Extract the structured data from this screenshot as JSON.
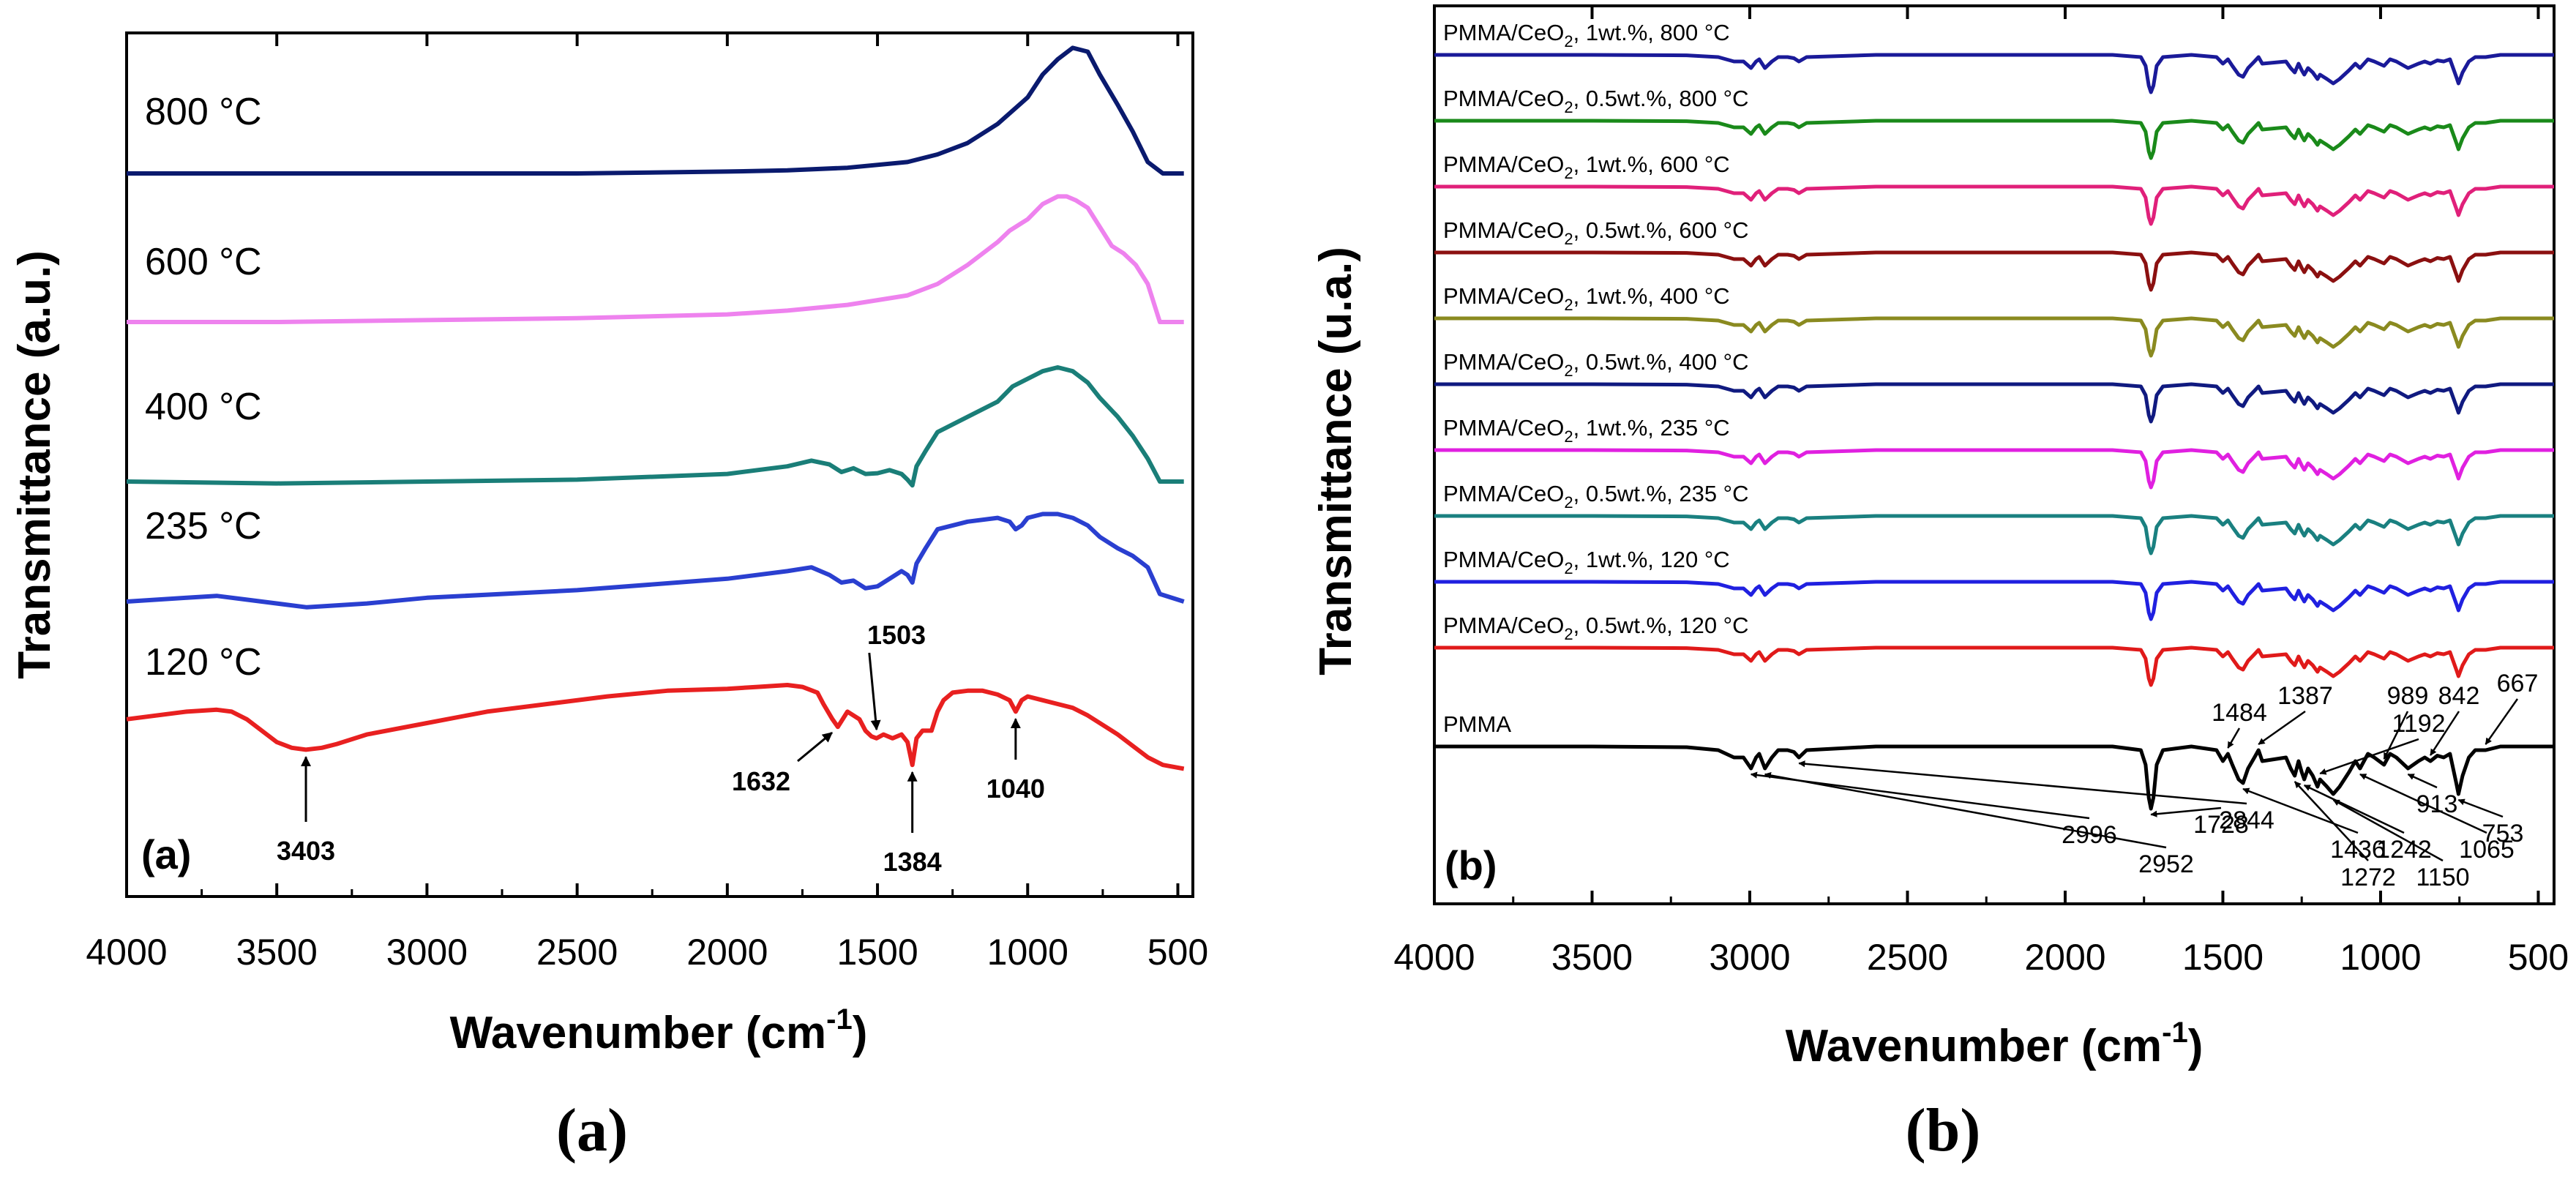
{
  "chart_data": [
    {
      "panel": "a",
      "type": "line",
      "panel_label": "(a)",
      "caption_letter": "a",
      "xlabel": "Wavenumber  (cm",
      "xlabel_sup": "-1",
      "xlabel_end": ")",
      "ylabel": "Transmittance (a.u.)",
      "xlim": [
        4000,
        450
      ],
      "xticks": [
        4000,
        3500,
        3000,
        2500,
        2000,
        1500,
        1000,
        500
      ],
      "series": [
        {
          "name": "800 °C",
          "color": "#0a1a6e",
          "x": [
            4000,
            3500,
            3000,
            2500,
            2000,
            1800,
            1600,
            1400,
            1300,
            1200,
            1100,
            1000,
            950,
            900,
            850,
            800,
            760,
            700,
            650,
            600,
            550,
            480
          ],
          "y": [
            0,
            0,
            0,
            0,
            0.5,
            0.8,
            1.5,
            3,
            5,
            8,
            13,
            20,
            26,
            30,
            33,
            32,
            26,
            18,
            11,
            3,
            0,
            0
          ]
        },
        {
          "name": "600 °C",
          "color": "#ee82ee",
          "x": [
            4000,
            3500,
            3000,
            2500,
            2000,
            1800,
            1600,
            1400,
            1300,
            1200,
            1100,
            1060,
            1000,
            950,
            900,
            870,
            840,
            800,
            760,
            720,
            680,
            640,
            600,
            560,
            480
          ],
          "y": [
            0,
            0,
            0.5,
            1,
            2,
            3,
            4.5,
            7,
            10,
            15,
            21,
            24,
            27,
            31,
            33,
            33,
            32,
            30,
            25,
            20,
            18,
            15,
            10,
            0,
            0
          ]
        },
        {
          "name": "400 °C",
          "color": "#1a7e78",
          "x": [
            4000,
            3500,
            3000,
            2500,
            2000,
            1800,
            1720,
            1660,
            1620,
            1580,
            1540,
            1500,
            1460,
            1420,
            1400,
            1384,
            1370,
            1340,
            1300,
            1200,
            1100,
            1050,
            1000,
            950,
            900,
            850,
            800,
            760,
            700,
            650,
            600,
            560,
            480
          ],
          "y": [
            0,
            -0.5,
            0,
            0.5,
            2,
            4,
            5.5,
            4.5,
            2.5,
            3.5,
            2,
            2.2,
            3,
            2,
            0.5,
            -1,
            4,
            8,
            13,
            17,
            21,
            25,
            27,
            29,
            30,
            29,
            26,
            22,
            17,
            12,
            6,
            0,
            0
          ]
        },
        {
          "name": "235 °C",
          "color": "#2a3fd0",
          "x": [
            4000,
            3800,
            3700,
            3600,
            3400,
            3200,
            3000,
            2500,
            2000,
            1800,
            1720,
            1660,
            1620,
            1580,
            1540,
            1500,
            1460,
            1420,
            1400,
            1384,
            1370,
            1340,
            1300,
            1200,
            1100,
            1060,
            1040,
            1020,
            1000,
            950,
            900,
            850,
            800,
            760,
            700,
            650,
            600,
            560,
            480
          ],
          "y": [
            0,
            1,
            1.5,
            0.5,
            -1.5,
            -0.5,
            1,
            3,
            6,
            8,
            9,
            7,
            5,
            5.5,
            3.5,
            4,
            6,
            8,
            7,
            5,
            10,
            14,
            19,
            21,
            22,
            21,
            19,
            20,
            22,
            23,
            23,
            22,
            20,
            17,
            14,
            12,
            9,
            2,
            0
          ]
        },
        {
          "name": "120 °C",
          "color": "#e82020",
          "x": [
            4000,
            3800,
            3700,
            3650,
            3600,
            3550,
            3500,
            3450,
            3403,
            3350,
            3300,
            3200,
            3000,
            2800,
            2600,
            2400,
            2200,
            2000,
            1900,
            1800,
            1750,
            1700,
            1680,
            1650,
            1632,
            1600,
            1560,
            1540,
            1520,
            1503,
            1480,
            1450,
            1420,
            1400,
            1384,
            1370,
            1350,
            1320,
            1300,
            1280,
            1250,
            1200,
            1150,
            1100,
            1060,
            1040,
            1020,
            1000,
            950,
            900,
            850,
            800,
            760,
            700,
            650,
            600,
            550,
            480
          ],
          "y": [
            1,
            3,
            3.5,
            3,
            1,
            -2,
            -5,
            -6.5,
            -7,
            -6.5,
            -5.5,
            -3,
            0,
            3,
            5,
            7,
            8.5,
            9,
            9.5,
            10,
            9.5,
            8,
            5,
            1,
            -1,
            3,
            1,
            -2,
            -3.5,
            -4,
            -3,
            -4,
            -3,
            -5,
            -11,
            -4,
            -2,
            -2,
            3,
            6,
            8,
            8.5,
            8.5,
            7.5,
            6,
            3,
            6,
            7,
            6,
            5,
            4,
            2,
            0,
            -3,
            -6,
            -9,
            -11,
            -12
          ]
        }
      ],
      "annotations": [
        {
          "text": "3403",
          "x": 3403
        },
        {
          "text": "1632",
          "x": 1632
        },
        {
          "text": "1503",
          "x": 1503
        },
        {
          "text": "1384",
          "x": 1384
        },
        {
          "text": "1040",
          "x": 1040
        }
      ]
    },
    {
      "panel": "b",
      "type": "line",
      "panel_label": "(b)",
      "caption_letter": "b",
      "xlabel": "Wavenumber (cm",
      "xlabel_sup": "-1",
      "xlabel_end": ")",
      "ylabel": "Transmittance (u.a.)",
      "xlim": [
        4000,
        450
      ],
      "xticks": [
        4000,
        3500,
        3000,
        2500,
        2000,
        1500,
        1000,
        500
      ],
      "reference_spectrum": {
        "x": [
          4000,
          3500,
          3200,
          3100,
          3050,
          3020,
          2996,
          2980,
          2970,
          2952,
          2930,
          2910,
          2880,
          2860,
          2844,
          2820,
          2600,
          2200,
          2000,
          1850,
          1760,
          1745,
          1735,
          1728,
          1720,
          1710,
          1690,
          1600,
          1520,
          1500,
          1484,
          1470,
          1450,
          1436,
          1420,
          1400,
          1387,
          1375,
          1300,
          1285,
          1272,
          1260,
          1250,
          1242,
          1230,
          1215,
          1200,
          1192,
          1170,
          1150,
          1130,
          1100,
          1080,
          1065,
          1040,
          1020,
          989,
          970,
          950,
          913,
          880,
          860,
          842,
          820,
          800,
          780,
          760,
          753,
          740,
          720,
          700,
          667,
          620,
          500,
          450
        ],
        "y": [
          0,
          0,
          -0.2,
          -1,
          -3,
          -3,
          -6,
          -3,
          -2,
          -6,
          -3,
          -1,
          -1,
          -1.5,
          -3,
          -1,
          0,
          0,
          0,
          0,
          -1,
          -5,
          -14,
          -17,
          -14,
          -5,
          -1,
          0,
          -1,
          -4,
          -2,
          -5,
          -9,
          -10,
          -6,
          -3,
          -1,
          -4,
          -3,
          -6,
          -8,
          -4,
          -7,
          -9,
          -6,
          -8,
          -11,
          -9,
          -11,
          -13,
          -11,
          -7,
          -4,
          -6,
          -2,
          -3,
          -5,
          -2,
          -3,
          -6,
          -4,
          -3,
          -4,
          -2.5,
          -3,
          -2,
          -10,
          -13,
          -8,
          -3,
          -1,
          -1,
          0,
          0,
          0
        ]
      },
      "series": [
        {
          "name": "PMMA/CeO2, 1wt.%, 800 °C",
          "prefix": "PMMA/CeO",
          "sub": "2",
          "suffix": ", 1wt.%, 800 °C",
          "color": "#1a1a99"
        },
        {
          "name": "PMMA/CeO2, 0.5wt.%, 800 °C",
          "prefix": "PMMA/CeO",
          "sub": "2",
          "suffix": ", 0.5wt.%, 800 °C",
          "color": "#1a8a1a"
        },
        {
          "name": "PMMA/CeO2, 1wt.%, 600 °C",
          "prefix": "PMMA/CeO",
          "sub": "2",
          "suffix": ", 1wt.%, 600 °C",
          "color": "#e0207a"
        },
        {
          "name": "PMMA/CeO2, 0.5wt.%, 600 °C",
          "prefix": "PMMA/CeO",
          "sub": "2",
          "suffix": ", 0.5wt.%, 600 °C",
          "color": "#8b1010"
        },
        {
          "name": "PMMA/CeO2, 1wt.%, 400 °C",
          "prefix": "PMMA/CeO",
          "sub": "2",
          "suffix": ", 1wt.%, 400 °C",
          "color": "#8a8a20"
        },
        {
          "name": "PMMA/CeO2, 0.5wt.%, 400 °C",
          "prefix": "PMMA/CeO",
          "sub": "2",
          "suffix": ", 0.5wt.%, 400 °C",
          "color": "#101a80"
        },
        {
          "name": "PMMA/CeO2, 1wt.%, 235 °C",
          "prefix": "PMMA/CeO",
          "sub": "2",
          "suffix": ", 1wt.%, 235 °C",
          "color": "#e020e0"
        },
        {
          "name": "PMMA/CeO2, 0.5wt.%, 235 °C",
          "prefix": "PMMA/CeO",
          "sub": "2",
          "suffix": ", 0.5wt.%, 235 °C",
          "color": "#1a8080"
        },
        {
          "name": "PMMA/CeO2, 1wt.%, 120 °C",
          "prefix": "PMMA/CeO",
          "sub": "2",
          "suffix": ", 1wt.%, 120 °C",
          "color": "#2020e0"
        },
        {
          "name": "PMMA/CeO2, 0.5wt.%, 120 °C",
          "prefix": "PMMA/CeO",
          "sub": "2",
          "suffix": ", 0.5wt.%, 120 °C",
          "color": "#e01a1a"
        },
        {
          "name": "PMMA",
          "prefix": "PMMA",
          "sub": "",
          "suffix": "",
          "color": "#000000"
        }
      ],
      "annotations": [
        {
          "text": "2996",
          "x": 2996
        },
        {
          "text": "2952",
          "x": 2952
        },
        {
          "text": "2844",
          "x": 2844
        },
        {
          "text": "1728",
          "x": 1728
        },
        {
          "text": "1484",
          "x": 1484
        },
        {
          "text": "1387",
          "x": 1387
        },
        {
          "text": "1436",
          "x": 1436
        },
        {
          "text": "1272",
          "x": 1272
        },
        {
          "text": "1242",
          "x": 1242
        },
        {
          "text": "1192",
          "x": 1192
        },
        {
          "text": "1150",
          "x": 1150
        },
        {
          "text": "1065",
          "x": 1065
        },
        {
          "text": "989",
          "x": 989
        },
        {
          "text": "913",
          "x": 913
        },
        {
          "text": "842",
          "x": 842
        },
        {
          "text": "753",
          "x": 753
        },
        {
          "text": "667",
          "x": 667
        }
      ]
    }
  ]
}
